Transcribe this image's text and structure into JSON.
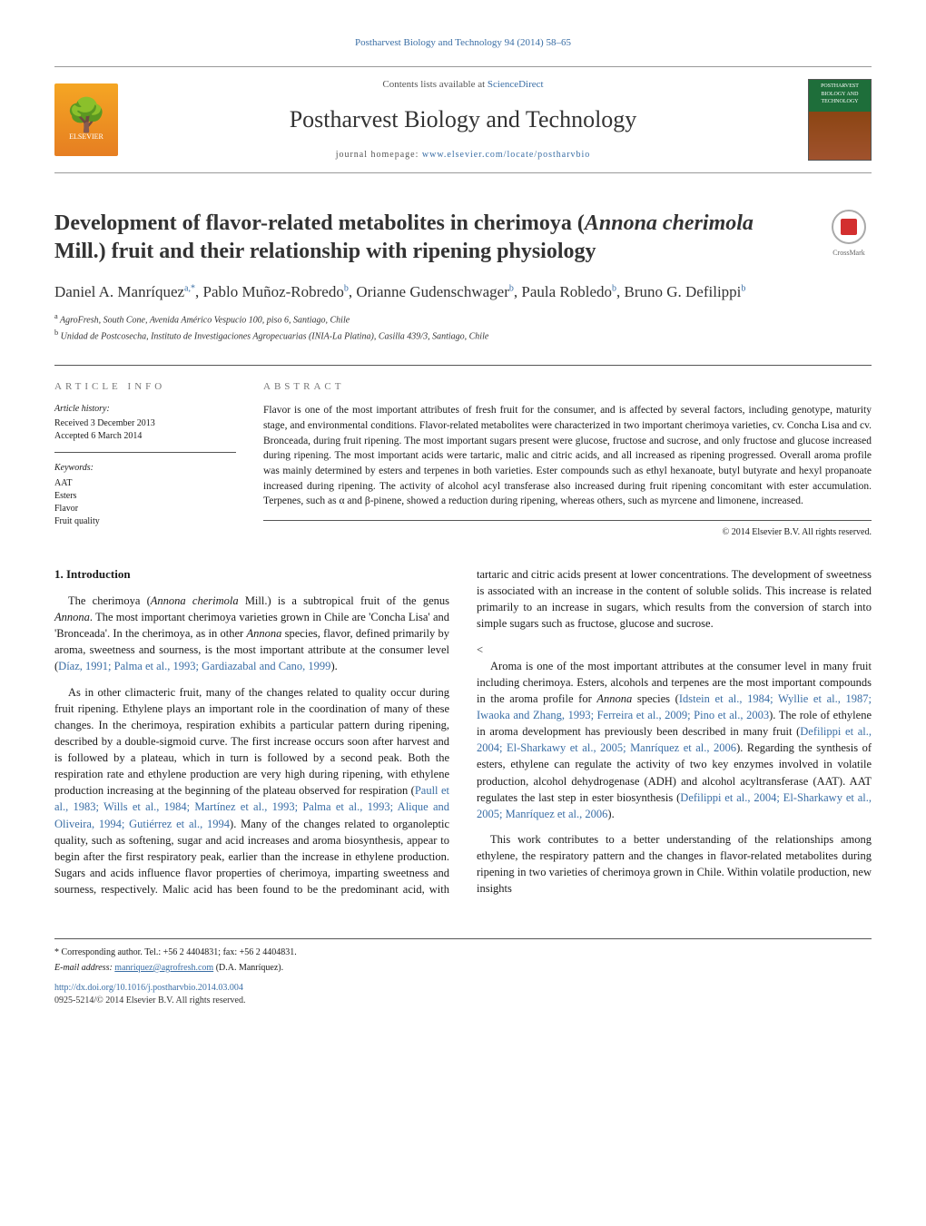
{
  "header": {
    "citation_line": "Postharvest Biology and Technology 94 (2014) 58–65",
    "contents_prefix": "Contents lists available at ",
    "contents_link": "ScienceDirect",
    "journal_name": "Postharvest Biology and Technology",
    "homepage_prefix": "journal homepage: ",
    "homepage_link": "www.elsevier.com/locate/postharvbio",
    "elsevier_label": "ELSEVIER",
    "cover_text": "POSTHARVEST BIOLOGY AND TECHNOLOGY"
  },
  "title": {
    "line1": "Development of flavor-related metabolites in cherimoya (",
    "italic1": "Annona cherimola",
    "line2": " Mill.) fruit and their relationship with ripening physiology"
  },
  "crossmark_label": "CrossMark",
  "authors_html": "Daniel A. Manríquez",
  "author_list": [
    {
      "name": "Daniel A. Manríquez",
      "sup": "a,*"
    },
    {
      "name": "Pablo Muñoz-Robredo",
      "sup": "b"
    },
    {
      "name": "Orianne Gudenschwager",
      "sup": "b"
    },
    {
      "name": "Paula Robledo",
      "sup": "b"
    },
    {
      "name": "Bruno G. Defilippi",
      "sup": "b"
    }
  ],
  "affiliations": [
    {
      "sup": "a",
      "text": "AgroFresh, South Cone, Avenida Américo Vespucio 100, piso 6, Santiago, Chile"
    },
    {
      "sup": "b",
      "text": "Unidad de Postcosecha, Instituto de Investigaciones Agropecuarias (INIA-La Platina), Casilla 439/3, Santiago, Chile"
    }
  ],
  "info": {
    "label": "article info",
    "history_label": "Article history:",
    "received": "Received 3 December 2013",
    "accepted": "Accepted 6 March 2014",
    "keywords_label": "Keywords:",
    "keywords": [
      "AAT",
      "Esters",
      "Flavor",
      "Fruit quality"
    ]
  },
  "abstract": {
    "label": "abstract",
    "text": "Flavor is one of the most important attributes of fresh fruit for the consumer, and is affected by several factors, including genotype, maturity stage, and environmental conditions. Flavor-related metabolites were characterized in two important cherimoya varieties, cv. Concha Lisa and cv. Bronceada, during fruit ripening. The most important sugars present were glucose, fructose and sucrose, and only fructose and glucose increased during ripening. The most important acids were tartaric, malic and citric acids, and all increased as ripening progressed. Overall aroma profile was mainly determined by esters and terpenes in both varieties. Ester compounds such as ethyl hexanoate, butyl butyrate and hexyl propanoate increased during ripening. The activity of alcohol acyl transferase also increased during fruit ripening concomitant with ester accumulation. Terpenes, such as α and β-pinene, showed a reduction during ripening, whereas others, such as myrcene and limonene, increased.",
    "copyright": "© 2014 Elsevier B.V. All rights reserved."
  },
  "body": {
    "h_intro": "1. Introduction",
    "p1a": "The cherimoya (",
    "p1_italic": "Annona cherimola",
    "p1b": " Mill.) is a subtropical fruit of the genus ",
    "p1_italic2": "Annona",
    "p1c": ". The most important cherimoya varieties grown in Chile are 'Concha Lisa' and 'Bronceada'. In the cherimoya, as in other ",
    "p1_italic3": "Annona",
    "p1d": " species, flavor, defined primarily by aroma, sweetness and sourness, is the most important attribute at the consumer level (",
    "p1_cite": "Díaz, 1991; Palma et al., 1993; Gardiazabal and Cano, 1999",
    "p1e": ").",
    "p2a": "As in other climacteric fruit, many of the changes related to quality occur during fruit ripening. Ethylene plays an important role in the coordination of many of these changes. In the cherimoya, respiration exhibits a particular pattern during ripening, described by a double-sigmoid curve. The first increase occurs soon after harvest and is followed by a plateau, which in turn is followed by a second peak. Both the respiration rate and ethylene production are very high during ripening, with ethylene production increasing at the beginning of the plateau observed for respiration (",
    "p2_cite": "Paull et al., 1983; Wills et al., 1984; Martínez et al., 1993; Palma et al., 1993; Alique and Oliveira, 1994; Gutiérrez et al., 1994",
    "p2b": "). Many of the changes related to organoleptic quality, such as softening, sugar and acid increases and aroma biosynthesis, appear to begin after the first respiratory peak, earlier than the increase in ethylene production. Sugars and acids influence flavor properties of cherimoya, imparting sweetness and sourness, respectively. Malic acid has been found to be the predominant acid, with tartaric and citric acids present at lower concentrations. The development of sweetness is associated with an increase in the content of soluble solids. This increase is related primarily to an increase in sugars, which results from the conversion of starch into simple sugars such as fructose, glucose and sucrose.",
    "p3a": "Aroma is one of the most important attributes at the consumer level in many fruit including cherimoya. Esters, alcohols and terpenes are the most important compounds in the aroma profile for ",
    "p3_italic": "Annona",
    "p3b": " species (",
    "p3_cite1": "Idstein et al., 1984; Wyllie et al., 1987; Iwaoka and Zhang, 1993; Ferreira et al., 2009; Pino et al., 2003",
    "p3c": "). The role of ethylene in aroma development has previously been described in many fruit (",
    "p3_cite2": "Defilippi et al., 2004; El-Sharkawy et al., 2005; Manríquez et al., 2006",
    "p3d": "). Regarding the synthesis of esters, ethylene can regulate the activity of two key enzymes involved in volatile production, alcohol dehydrogenase (ADH) and alcohol acyltransferase (AAT). AAT regulates the last step in ester biosynthesis (",
    "p3_cite3": "Defilippi et al., 2004; El-Sharkawy et al., 2005; Manríquez et al., 2006",
    "p3e": ").",
    "p4": "This work contributes to a better understanding of the relationships among ethylene, the respiratory pattern and the changes in flavor-related metabolites during ripening in two varieties of cherimoya grown in Chile. Within volatile production, new insights"
  },
  "footer": {
    "corr": "* Corresponding author. Tel.: +56 2 4404831; fax: +56 2 4404831.",
    "email_label": "E-mail address: ",
    "email": "manriquez@agrofresh.com",
    "email_suffix": " (D.A. Manríquez).",
    "doi": "http://dx.doi.org/10.1016/j.postharvbio.2014.03.004",
    "issn": "0925-5214/© 2014 Elsevier B.V. All rights reserved."
  },
  "colors": {
    "link": "#3a6ea5",
    "text": "#1a1a1a",
    "border": "#555555"
  }
}
